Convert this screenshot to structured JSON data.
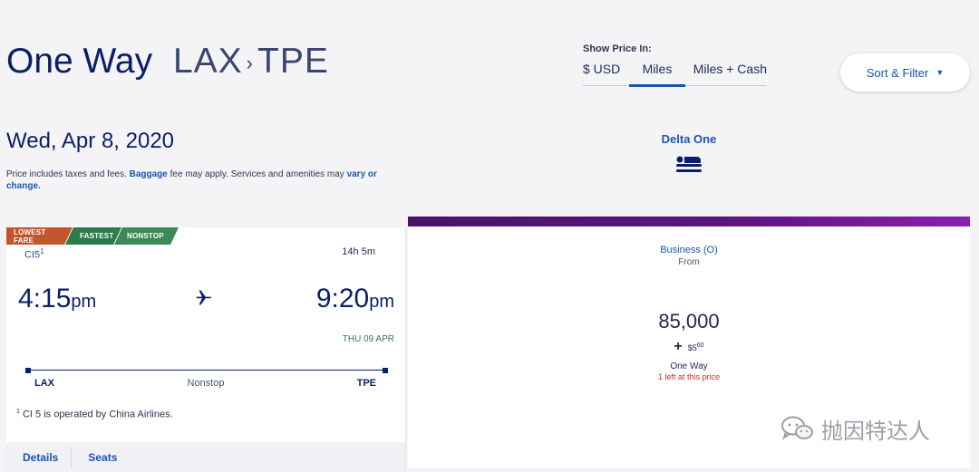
{
  "header": {
    "trip_type": "One Way",
    "origin": "LAX",
    "separator": "›",
    "destination": "TPE"
  },
  "price_toggle": {
    "label": "Show Price In:",
    "options": [
      "$ USD",
      "Miles",
      "Miles + Cash"
    ],
    "selected": "Miles"
  },
  "sort_filter": {
    "label": "Sort & Filter",
    "caret": "▼"
  },
  "date": "Wed, Apr 8, 2020",
  "notice": {
    "part1": "Price includes taxes and fees.",
    "baggage_link": "Baggage",
    "part2": "fee may apply. Services and amenities may",
    "vary_link": "vary or change."
  },
  "cabin_column": {
    "title": "Delta One",
    "icon": "lie-flat-seat-icon"
  },
  "flight": {
    "badges": [
      "LOWEST FARE",
      "FASTEST",
      "NONSTOP"
    ],
    "badge_colors": [
      "#c0562a",
      "#2d7a4d",
      "#3c8a55"
    ],
    "flight_number": "CI5",
    "flight_number_note": "1",
    "duration": "14h 5m",
    "departure_time": "4:15",
    "departure_ampm": "pm",
    "arrival_time": "9:20",
    "arrival_ampm": "pm",
    "arrival_date": "THU 09 APR",
    "origin": "LAX",
    "destination": "TPE",
    "stops": "Nonstop",
    "footnote_marker": "1",
    "footnote": "CI 5 is operated by China Airlines.",
    "links": [
      "Details",
      "Seats"
    ]
  },
  "fare": {
    "accent_color": "#5c1680",
    "cabin": "Business (O)",
    "from_label": "From",
    "miles": "85,000",
    "plus": "+",
    "cash": "$5",
    "cash_cents": "60",
    "trip": "One Way",
    "availability": "1 left at this price"
  },
  "watermark": {
    "text": "抛因特达人",
    "icon": "wechat-icon"
  }
}
